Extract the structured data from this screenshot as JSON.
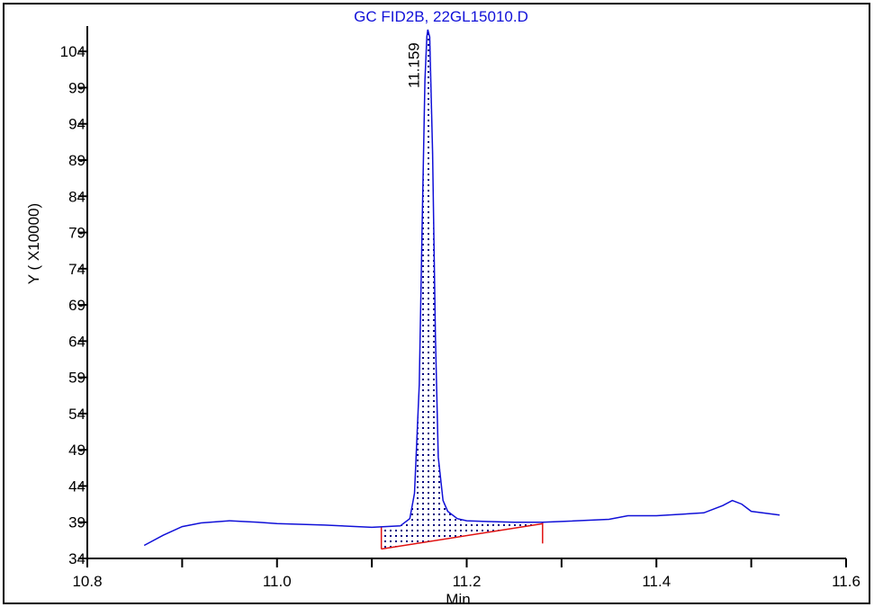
{
  "chart_data": {
    "type": "line",
    "title": "GC FID2B, 22GL15010.D",
    "xlabel": "Min",
    "ylabel": "Y ( X10000)",
    "xlim": [
      10.8,
      11.6
    ],
    "ylim": [
      34,
      107
    ],
    "x_ticks": [
      10.8,
      11.0,
      11.2,
      11.4,
      11.6
    ],
    "x_tick_labels": [
      "10.8",
      "11.0",
      "11.2",
      "11.4",
      "11.6"
    ],
    "y_ticks": [
      34,
      39,
      44,
      49,
      54,
      59,
      64,
      69,
      74,
      79,
      84,
      89,
      94,
      99,
      104
    ],
    "y_tick_labels": [
      "34",
      "39",
      "44",
      "49",
      "54",
      "59",
      "64",
      "69",
      "74",
      "79",
      "84",
      "89",
      "94",
      "99",
      "104"
    ],
    "grid": false,
    "series": [
      {
        "x": [
          10.86,
          10.88,
          10.9,
          10.92,
          10.95,
          10.98,
          11.0,
          11.05,
          11.1,
          11.13,
          11.14,
          11.145,
          11.15,
          11.153,
          11.156,
          11.158,
          11.159,
          11.161,
          11.164,
          11.167,
          11.17,
          11.175,
          11.18,
          11.19,
          11.2,
          11.22,
          11.25,
          11.28,
          11.3,
          11.35,
          11.37,
          11.4,
          11.45,
          11.47,
          11.48,
          11.49,
          11.5,
          11.53
        ],
        "y": [
          35.8,
          37.2,
          38.4,
          38.9,
          39.2,
          39.0,
          38.8,
          38.6,
          38.3,
          38.5,
          39.5,
          43.0,
          58.0,
          80.0,
          100.0,
          106.0,
          107.0,
          106.0,
          90.0,
          65.0,
          48.0,
          42.0,
          40.5,
          39.5,
          39.2,
          39.1,
          39.0,
          39.0,
          39.1,
          39.4,
          39.9,
          39.9,
          40.3,
          41.3,
          42.0,
          41.5,
          40.5,
          40.0
        ]
      }
    ],
    "peaks": [
      {
        "label": "11.159",
        "retention_time": 11.159,
        "apex": 107.0,
        "baseline_start": [
          11.11,
          35.3
        ],
        "baseline_end": [
          11.28,
          38.8
        ]
      }
    ],
    "colors": {
      "trace": "#1010d8",
      "baseline": "#e01010",
      "title": "#1010d8",
      "peak_label": "#1010d8",
      "fill_dots": "#000080"
    }
  }
}
